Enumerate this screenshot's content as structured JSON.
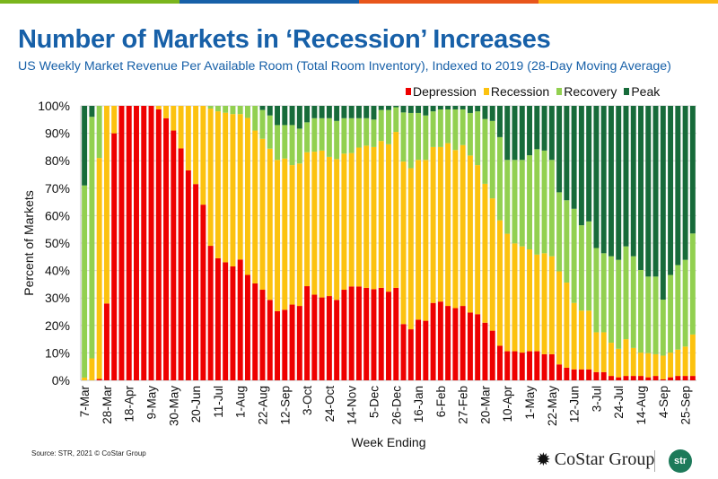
{
  "header": {
    "title": "Number of Markets in ‘Recession’ Increases",
    "subtitle": "US Weekly Market Revenue Per Available Room (Total Room Inventory), Indexed to 2019 (28-Day Moving Average)",
    "stripe_colors": [
      "#7ab51d",
      "#1760a8",
      "#e8561c",
      "#fbb913"
    ]
  },
  "footer": {
    "source": "Source: STR, 2021 © CoStar Group",
    "costar_logo": "CoStar Group",
    "str_logo": "str"
  },
  "chart_data": {
    "type": "bar",
    "stacked": true,
    "title": "",
    "xlabel": "Week Ending",
    "ylabel": "Percent of Markets",
    "ylim": [
      0,
      100
    ],
    "yticks": [
      "0%",
      "10%",
      "20%",
      "30%",
      "40%",
      "50%",
      "60%",
      "70%",
      "80%",
      "90%",
      "100%"
    ],
    "tick_every": 3,
    "tick_labels": [
      "7-Mar",
      "28-Mar",
      "18-Apr",
      "9-May",
      "30-May",
      "20-Jun",
      "11-Jul",
      "1-Aug",
      "22-Aug",
      "12-Sep",
      "3-Oct",
      "24-Oct",
      "14-Nov",
      "5-Dec",
      "26-Dec",
      "16-Jan",
      "6-Feb",
      "27-Feb",
      "20-Mar",
      "10-Apr",
      "1-May",
      "22-May",
      "12-Jun",
      "3-Jul",
      "24-Jul",
      "14-Aug",
      "4-Sep",
      "25-Sep"
    ],
    "legend_position": "top-right",
    "grid": true,
    "series": [
      {
        "name": "Depression",
        "color": "#ee0000",
        "values": [
          0,
          0,
          0.5,
          28,
          90,
          100,
          100,
          100,
          100,
          100,
          98.7,
          95.5,
          91,
          84.5,
          76.5,
          71.5,
          64,
          49,
          44.5,
          43,
          41.5,
          44,
          38.4,
          35.3,
          33,
          29.3,
          25.2,
          25.7,
          27.6,
          27.1,
          34.3,
          31.2,
          30.2,
          30.7,
          29.3,
          33,
          34.2,
          34.2,
          33.7,
          33.2,
          33.7,
          32.3,
          33.7,
          20.5,
          18.6,
          22.1,
          21.7,
          28.2,
          28.7,
          27.1,
          26.3,
          27.1,
          24.7,
          24.1,
          21,
          18.1,
          12.6,
          10.6,
          10.6,
          10.1,
          10.6,
          10.6,
          9.5,
          9.5,
          5.8,
          4.6,
          4,
          4,
          4,
          3,
          3,
          1.6,
          1.1,
          1.6,
          1.6,
          1.6,
          1.1,
          1.6,
          0.4,
          1.1,
          1.6,
          1.6,
          1.6
        ]
      },
      {
        "name": "Recession",
        "color": "#fcc20f",
        "values": [
          1,
          8,
          80.5,
          72,
          10,
          0,
          0,
          0,
          0,
          0,
          1.3,
          4.5,
          9,
          15.5,
          23.5,
          28.5,
          36,
          50,
          53.5,
          54.5,
          55.5,
          53,
          57.2,
          55.7,
          55,
          55.1,
          55.1,
          55.1,
          50.8,
          51.9,
          48.8,
          52.1,
          53.5,
          50.7,
          51.3,
          49.6,
          48.6,
          50.6,
          51.8,
          51.8,
          53.5,
          53.7,
          56.8,
          59.2,
          58.7,
          58.2,
          58.6,
          56.8,
          56.3,
          59.3,
          57.6,
          58.6,
          57.2,
          54.3,
          50.6,
          48.2,
          45.7,
          42.8,
          39.3,
          38.7,
          37.1,
          35.2,
          36.8,
          35.7,
          33.9,
          31,
          24.2,
          21.4,
          21.4,
          14.5,
          14.5,
          12.1,
          10.4,
          13.4,
          10.2,
          8.5,
          8.8,
          7.9,
          8.6,
          9,
          9.6,
          10.7,
          15.1
        ]
      },
      {
        "name": "Recovery",
        "color": "#92d050",
        "values": [
          70,
          88,
          19,
          0,
          0,
          0,
          0,
          0,
          0,
          0,
          0,
          0,
          0,
          0,
          0,
          0,
          0,
          1,
          2,
          2.5,
          3,
          3,
          4.4,
          9,
          10.5,
          12.1,
          12.7,
          12.2,
          14.6,
          12.7,
          10.9,
          12.2,
          11.8,
          14.1,
          13.9,
          12.9,
          12.7,
          10.7,
          10,
          10,
          11.3,
          12.5,
          9,
          17.9,
          20.1,
          17.1,
          16.2,
          13,
          13.7,
          12.3,
          14.8,
          13,
          15.5,
          19.6,
          23.6,
          28.2,
          30.3,
          26.9,
          30.4,
          31.5,
          34.3,
          38.4,
          37.4,
          35.1,
          28.8,
          30,
          34.3,
          31.1,
          32.5,
          30.7,
          28.8,
          31.5,
          32.4,
          33.8,
          33.4,
          30.1,
          27.9,
          28.3,
          20.4,
          28.3,
          30.8,
          31.6,
          36.8
        ]
      },
      {
        "name": "Peak",
        "color": "#176b3a",
        "values": [
          29,
          4,
          0,
          0,
          0,
          0,
          0,
          0,
          0,
          0,
          0,
          0,
          0,
          0,
          0,
          0,
          0,
          0,
          0,
          0,
          0,
          0,
          0,
          0,
          1.5,
          3.5,
          7,
          7,
          7,
          8.3,
          6,
          4.5,
          4.5,
          4.5,
          5.5,
          4.5,
          4.5,
          4.5,
          4.5,
          5,
          1.5,
          1.5,
          0.5,
          2.4,
          2.6,
          2.6,
          3.5,
          2,
          1.3,
          1.3,
          1.3,
          1.3,
          2.6,
          2,
          4.8,
          5.5,
          11.4,
          19.7,
          19.7,
          19.7,
          18,
          15.8,
          16.3,
          19.7,
          31.5,
          34.4,
          37.5,
          43.5,
          42.1,
          51.8,
          53.7,
          54.8,
          56.1,
          51.2,
          54.8,
          59.8,
          62.2,
          62.2,
          70.6,
          61.6,
          58,
          56.1,
          46.5
        ]
      }
    ]
  }
}
